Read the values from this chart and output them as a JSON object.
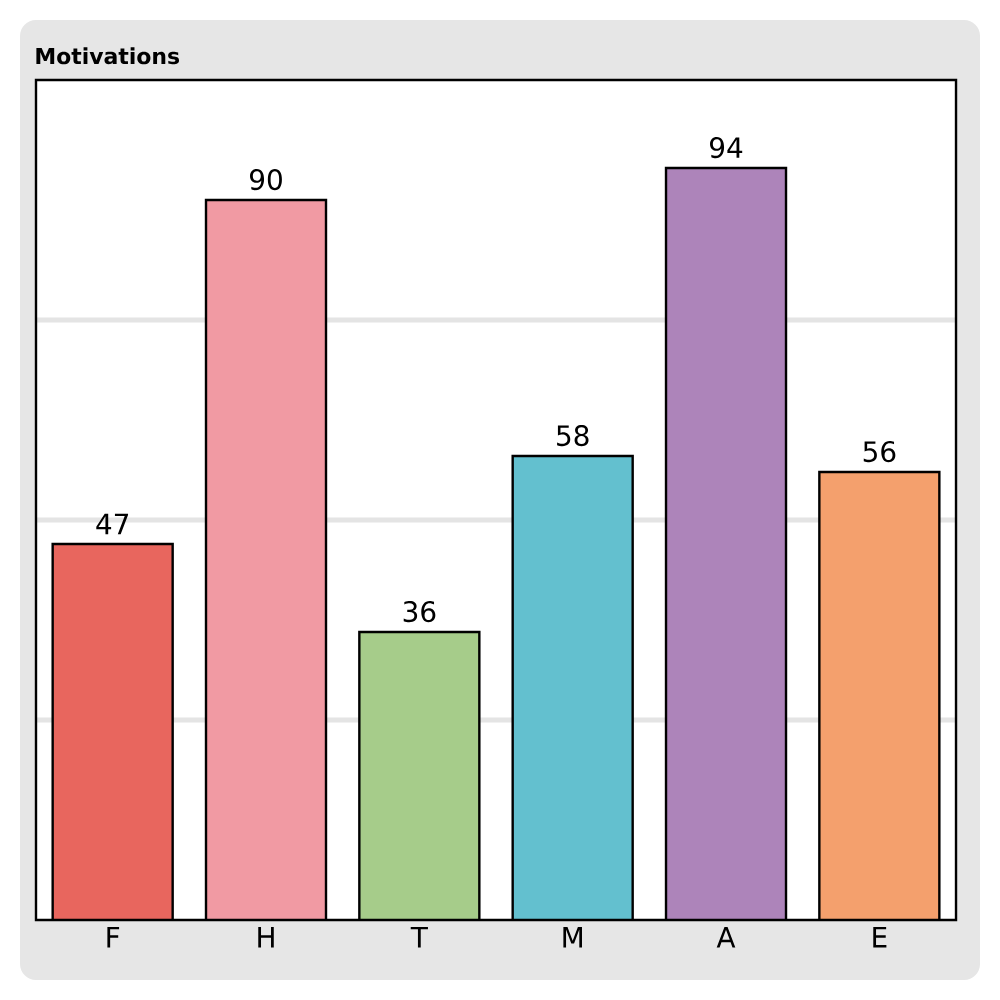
{
  "chart_data": {
    "type": "bar",
    "title": "Motivations",
    "categories": [
      "F",
      "H",
      "T",
      "M",
      "A",
      "E"
    ],
    "values": [
      47,
      90,
      36,
      58,
      94,
      56
    ],
    "colors": [
      "#e8665e",
      "#f19aa3",
      "#a6cc8a",
      "#63c0cf",
      "#ad84ba",
      "#f4a06d"
    ],
    "ylim": [
      0,
      105
    ],
    "yticks": [
      {
        "value": 25,
        "label": null
      },
      {
        "value": 50,
        "label": null
      },
      {
        "value": 75,
        "label": null
      }
    ],
    "grid": "y",
    "tick_labels": "x",
    "data_labels": true
  }
}
